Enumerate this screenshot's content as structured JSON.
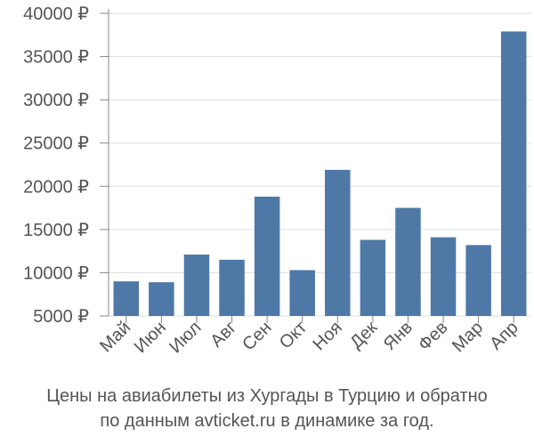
{
  "chart_data": {
    "type": "bar",
    "categories": [
      "Май",
      "Июн",
      "Июл",
      "Авг",
      "Сен",
      "Окт",
      "Ноя",
      "Дек",
      "Янв",
      "Фев",
      "Мар",
      "Апр"
    ],
    "values": [
      9000,
      8900,
      12100,
      11500,
      18800,
      10300,
      21900,
      13800,
      17500,
      14100,
      13200,
      37900
    ],
    "ylim": [
      5000,
      40000
    ],
    "yticks": [
      5000,
      10000,
      15000,
      20000,
      25000,
      30000,
      35000,
      40000
    ],
    "ytick_labels": [
      "5000 ₽",
      "10000 ₽",
      "15000 ₽",
      "20000 ₽",
      "25000 ₽",
      "30000 ₽",
      "35000 ₽",
      "40000 ₽"
    ],
    "grid": true,
    "colors": {
      "bar": "#4e79a7",
      "grid": "#dddddd",
      "axis": "#888888",
      "text": "#555555"
    }
  },
  "caption": {
    "line1": "Цены на авиабилеты из Хургады в Турцию и обратно",
    "line2": "по данным avticket.ru в динамике за год."
  }
}
